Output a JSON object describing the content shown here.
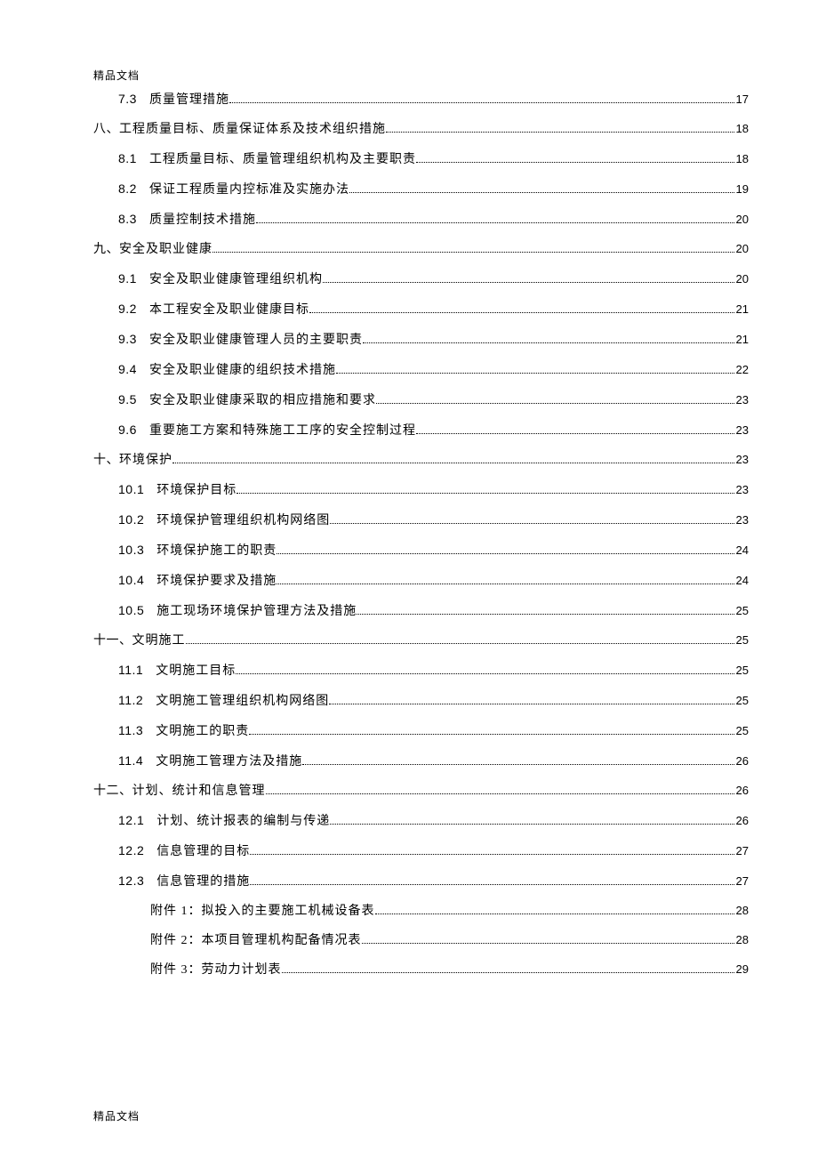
{
  "header": "精品文档",
  "footer": "精品文档",
  "toc": {
    "entries": [
      {
        "indent": 1,
        "num": "7.3",
        "title": "质量管理措施",
        "page": "17"
      },
      {
        "indent": 0,
        "num": "八、",
        "num_cn": true,
        "title": "工程质量目标、质量保证体系及技术组织措施",
        "page": "18"
      },
      {
        "indent": 1,
        "num": "8.1",
        "title": "工程质量目标、质量管理组织机构及主要职责",
        "page": "18"
      },
      {
        "indent": 1,
        "num": "8.2",
        "title": "保证工程质量内控标准及实施办法",
        "page": "19"
      },
      {
        "indent": 1,
        "num": "8.3",
        "title": "质量控制技术措施",
        "page": "20"
      },
      {
        "indent": 0,
        "num": "九、",
        "num_cn": true,
        "title": "安全及职业健康",
        "page": "20"
      },
      {
        "indent": 1,
        "num": "9.1",
        "title": "安全及职业健康管理组织机构",
        "page": "20"
      },
      {
        "indent": 1,
        "num": "9.2",
        "title": "本工程安全及职业健康目标",
        "page": "21"
      },
      {
        "indent": 1,
        "num": "9.3",
        "title": "安全及职业健康管理人员的主要职责",
        "page": "21"
      },
      {
        "indent": 1,
        "num": "9.4",
        "title": "安全及职业健康的组织技术措施",
        "page": "22"
      },
      {
        "indent": 1,
        "num": "9.5",
        "title": "安全及职业健康采取的相应措施和要求",
        "page": "23"
      },
      {
        "indent": 1,
        "num": "9.6",
        "title": "重要施工方案和特殊施工工序的安全控制过程",
        "page": "23"
      },
      {
        "indent": 0,
        "num": "十、",
        "num_cn": true,
        "title": "环境保护",
        "page": "23"
      },
      {
        "indent": 1,
        "num": "10.1",
        "title": "环境保护目标",
        "page": "23"
      },
      {
        "indent": 1,
        "num": "10.2",
        "title": "环境保护管理组织机构网络图",
        "page": "23"
      },
      {
        "indent": 1,
        "num": "10.3",
        "title": "环境保护施工的职责",
        "page": "24"
      },
      {
        "indent": 1,
        "num": "10.4",
        "title": "环境保护要求及措施",
        "page": "24"
      },
      {
        "indent": 1,
        "num": "10.5",
        "title": "施工现场环境保护管理方法及措施",
        "page": "25"
      },
      {
        "indent": 0,
        "num": "十一、",
        "num_cn": true,
        "title": "文明施工",
        "page": "25"
      },
      {
        "indent": 1,
        "num": "11.1",
        "title": "文明施工目标",
        "page": "25"
      },
      {
        "indent": 1,
        "num": "11.2",
        "title": "文明施工管理组织机构网络图",
        "page": "25"
      },
      {
        "indent": 1,
        "num": "11.3",
        "title": "文明施工的职责",
        "page": "25"
      },
      {
        "indent": 1,
        "num": "11.4",
        "title": "文明施工管理方法及措施",
        "page": "26"
      },
      {
        "indent": 0,
        "num": "十二、",
        "num_cn": true,
        "title": "计划、统计和信息管理",
        "page": "26"
      },
      {
        "indent": 1,
        "num": "12.1",
        "title": "计划、统计报表的编制与传递",
        "page": "26"
      },
      {
        "indent": 1,
        "num": "12.2",
        "title": "信息管理的目标",
        "page": "27"
      },
      {
        "indent": 1,
        "num": "12.3",
        "title": "信息管理的措施",
        "page": "27"
      },
      {
        "indent": 2,
        "num": "",
        "title": "附件 1：拟投入的主要施工机械设备表",
        "page": "28"
      },
      {
        "indent": 2,
        "num": "",
        "title": "附件 2：本项目管理机构配备情况表",
        "page": "28"
      },
      {
        "indent": 2,
        "num": "",
        "title": "附件 3：劳动力计划表",
        "page": "29"
      }
    ]
  }
}
